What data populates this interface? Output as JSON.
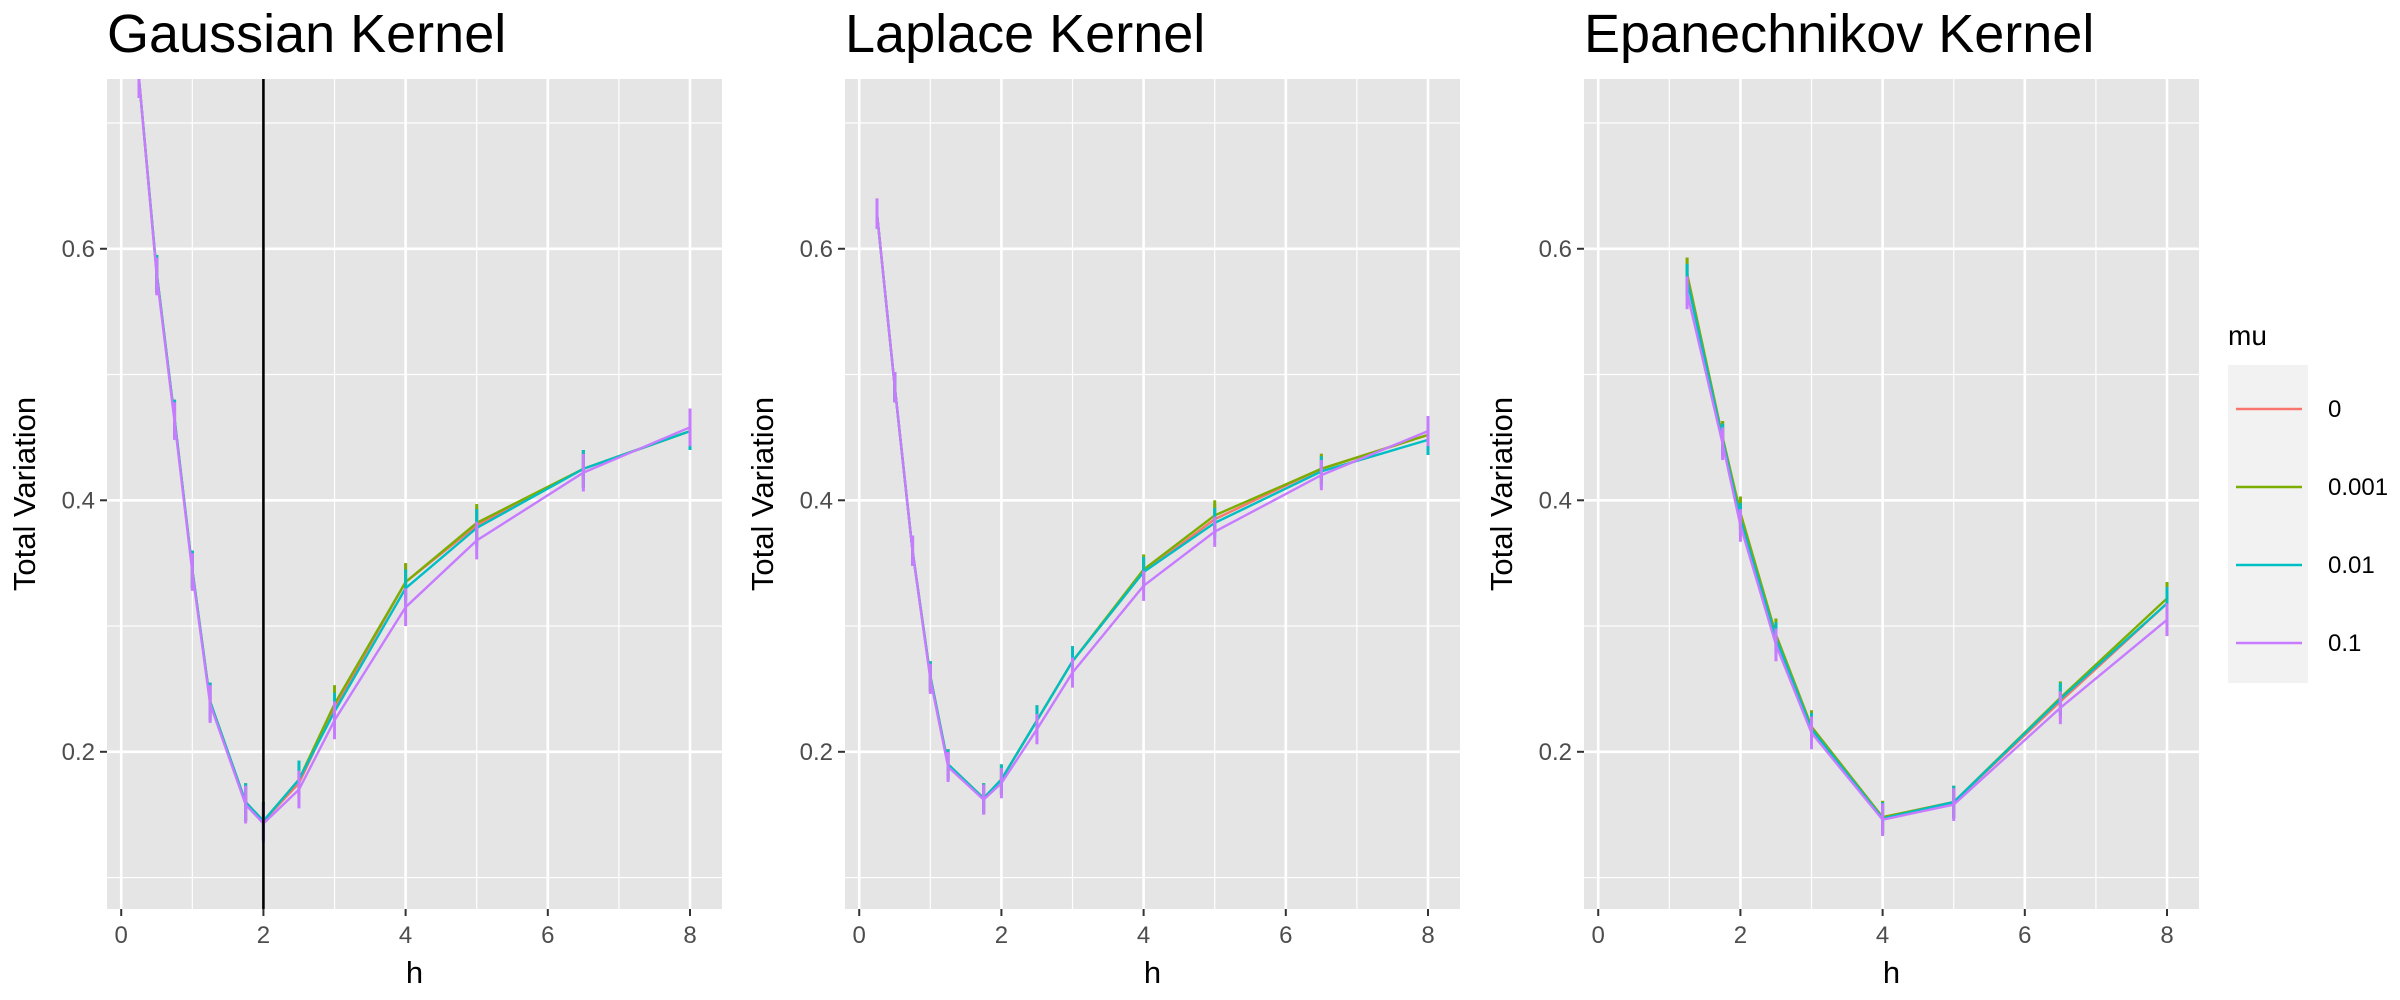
{
  "chart_data": [
    {
      "type": "line",
      "title": "Gaussian Kernel",
      "xlabel": "h",
      "ylabel": "Total Variation",
      "xlim": [
        -0.2,
        8.45
      ],
      "ylim": [
        0.075,
        0.735
      ],
      "xticks": [
        0,
        2,
        4,
        6,
        8
      ],
      "yticks": [
        0.2,
        0.4,
        0.6
      ],
      "xtick_labels": [
        "0",
        "2",
        "4",
        "6",
        "8"
      ],
      "ytick_labels": [
        "0.2",
        "0.4",
        "0.6"
      ],
      "vline": 2,
      "x": [
        0.25,
        0.5,
        0.75,
        1,
        1.25,
        1.75,
        2,
        2.5,
        3,
        4,
        5,
        6.5,
        8
      ],
      "series": [
        {
          "name": "0",
          "values": [
            0.735,
            0.58,
            0.465,
            0.345,
            0.24,
            0.16,
            0.145,
            0.175,
            0.235,
            0.335,
            0.38,
            0.425,
            0.455
          ],
          "err": 0.015
        },
        {
          "name": "0.001",
          "values": [
            0.735,
            0.58,
            0.465,
            0.345,
            0.24,
            0.16,
            0.145,
            0.178,
            0.238,
            0.335,
            0.382,
            0.425,
            0.455
          ],
          "err": 0.015
        },
        {
          "name": "0.01",
          "values": [
            0.735,
            0.58,
            0.465,
            0.345,
            0.24,
            0.16,
            0.145,
            0.178,
            0.232,
            0.33,
            0.378,
            0.425,
            0.455
          ],
          "err": 0.015
        },
        {
          "name": "0.1",
          "values": [
            0.735,
            0.578,
            0.463,
            0.343,
            0.238,
            0.158,
            0.143,
            0.17,
            0.225,
            0.315,
            0.368,
            0.422,
            0.458
          ],
          "err": 0.015
        }
      ]
    },
    {
      "type": "line",
      "title": "Laplace Kernel",
      "xlabel": "h",
      "ylabel": "Total Variation",
      "xlim": [
        -0.2,
        8.45
      ],
      "ylim": [
        0.075,
        0.735
      ],
      "xticks": [
        0,
        2,
        4,
        6,
        8
      ],
      "yticks": [
        0.2,
        0.4,
        0.6
      ],
      "xtick_labels": [
        "0",
        "2",
        "4",
        "6",
        "8"
      ],
      "ytick_labels": [
        "0.2",
        "0.4",
        "0.6"
      ],
      "x": [
        0.25,
        0.5,
        0.75,
        1,
        1.25,
        1.75,
        2,
        2.5,
        3,
        4,
        5,
        6.5,
        8
      ],
      "series": [
        {
          "name": "0",
          "values": [
            0.628,
            0.49,
            0.36,
            0.26,
            0.19,
            0.163,
            0.178,
            0.225,
            0.272,
            0.343,
            0.385,
            0.425,
            0.452
          ],
          "err": 0.012
        },
        {
          "name": "0.001",
          "values": [
            0.628,
            0.49,
            0.36,
            0.26,
            0.19,
            0.163,
            0.178,
            0.225,
            0.272,
            0.345,
            0.388,
            0.425,
            0.452
          ],
          "err": 0.012
        },
        {
          "name": "0.01",
          "values": [
            0.628,
            0.49,
            0.36,
            0.26,
            0.19,
            0.163,
            0.178,
            0.225,
            0.272,
            0.343,
            0.382,
            0.423,
            0.448
          ],
          "err": 0.012
        },
        {
          "name": "0.1",
          "values": [
            0.628,
            0.49,
            0.36,
            0.258,
            0.188,
            0.162,
            0.175,
            0.218,
            0.263,
            0.332,
            0.375,
            0.42,
            0.455
          ],
          "err": 0.012
        }
      ]
    },
    {
      "type": "line",
      "title": "Epanechnikov Kernel",
      "xlabel": "h",
      "ylabel": "Total Variation",
      "xlim": [
        -0.2,
        8.45
      ],
      "ylim": [
        0.075,
        0.735
      ],
      "xticks": [
        0,
        2,
        4,
        6,
        8
      ],
      "yticks": [
        0.2,
        0.4,
        0.6
      ],
      "xtick_labels": [
        "0",
        "2",
        "4",
        "6",
        "8"
      ],
      "ytick_labels": [
        "0.2",
        "0.4",
        "0.6"
      ],
      "x": [
        1.25,
        1.75,
        2,
        2.5,
        3,
        4,
        5,
        6.5,
        8
      ],
      "series": [
        {
          "name": "0",
          "values": [
            0.58,
            0.45,
            0.39,
            0.293,
            0.22,
            0.148,
            0.16,
            0.24,
            0.318
          ],
          "err": 0.013
        },
        {
          "name": "0.001",
          "values": [
            0.58,
            0.45,
            0.39,
            0.293,
            0.22,
            0.148,
            0.16,
            0.243,
            0.322
          ],
          "err": 0.013
        },
        {
          "name": "0.01",
          "values": [
            0.575,
            0.448,
            0.385,
            0.29,
            0.218,
            0.147,
            0.16,
            0.242,
            0.318
          ],
          "err": 0.013
        },
        {
          "name": "0.1",
          "values": [
            0.565,
            0.445,
            0.38,
            0.285,
            0.215,
            0.146,
            0.158,
            0.235,
            0.305
          ],
          "err": 0.013
        }
      ]
    }
  ],
  "legend": {
    "title": "mu",
    "position": "right",
    "entries": [
      {
        "label": "0",
        "color": "#F8766D"
      },
      {
        "label": "0.001",
        "color": "#7CAE00"
      },
      {
        "label": "0.01",
        "color": "#00BFC4"
      },
      {
        "label": "0.1",
        "color": "#C77CFF"
      }
    ]
  },
  "colors": {
    "panel_background": "#E5E5E5",
    "grid": "#FFFFFF",
    "vline": "#000000",
    "tick_text": "#4D4D4D"
  }
}
